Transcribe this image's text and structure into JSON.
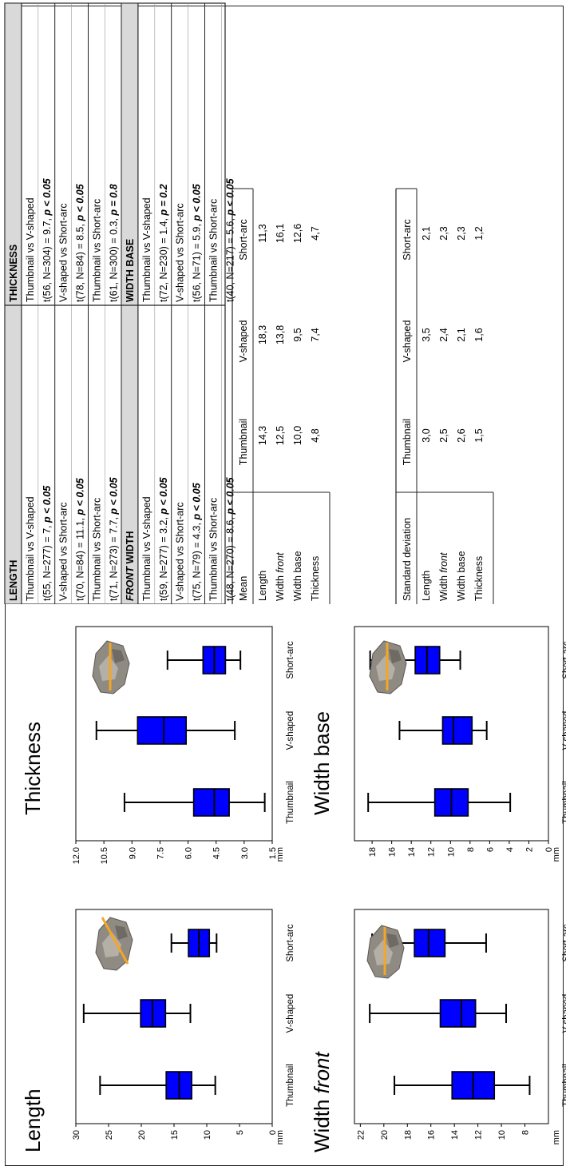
{
  "chart_data": [
    {
      "type": "box",
      "title": "Length",
      "unit": "mm",
      "y_ticks": [
        "0",
        "5",
        "10",
        "15",
        "20",
        "25",
        "30"
      ],
      "ylim": [
        0,
        30
      ],
      "categories": [
        "Thumbnail",
        "V-shaped",
        "Short-arc"
      ],
      "boxes": [
        {
          "min": 8.7,
          "q1": 12.3,
          "median": 14.2,
          "q3": 16.2,
          "max": 26.3
        },
        {
          "min": 12.5,
          "q1": 16.3,
          "median": 18.3,
          "q3": 20.1,
          "max": 28.8
        },
        {
          "min": 8.5,
          "q1": 9.6,
          "median": 11.2,
          "q3": 12.8,
          "max": 15.4
        }
      ],
      "color": "#0000ff"
    },
    {
      "type": "box",
      "title": "Thickness",
      "unit": "mm",
      "y_ticks": [
        "1.5",
        "3.0",
        "4.5",
        "6.0",
        "7.5",
        "9.0",
        "10.5",
        "12.0"
      ],
      "ylim": [
        1.5,
        12.0
      ],
      "categories": [
        "Thumbnail",
        "V-shaped",
        "Short-arc"
      ],
      "boxes": [
        {
          "min": 1.9,
          "q1": 3.8,
          "median": 4.6,
          "q3": 5.7,
          "max": 9.4
        },
        {
          "min": 3.5,
          "q1": 6.1,
          "median": 7.3,
          "q3": 8.7,
          "max": 10.9
        },
        {
          "min": 3.2,
          "q1": 4.0,
          "median": 4.6,
          "q3": 5.2,
          "max": 7.1
        }
      ],
      "color": "#0000ff"
    },
    {
      "type": "box",
      "title": "Width ",
      "title_italic": "front",
      "unit": "mm",
      "y_ticks": [
        "8",
        "10",
        "12",
        "14",
        "16",
        "18",
        "20",
        "22"
      ],
      "ylim": [
        6,
        22.5
      ],
      "categories": [
        "Thumbnail",
        "V-shaped",
        "Short-arc"
      ],
      "boxes": [
        {
          "min": 7.6,
          "q1": 10.6,
          "median": 12.4,
          "q3": 14.2,
          "max": 19.1
        },
        {
          "min": 9.6,
          "q1": 12.2,
          "median": 13.4,
          "q3": 15.2,
          "max": 21.2
        },
        {
          "min": 11.3,
          "q1": 14.8,
          "median": 16.2,
          "q3": 17.4,
          "max": 21.0
        }
      ],
      "color": "#0000ff"
    },
    {
      "type": "box",
      "title": "Width base",
      "unit": "mm",
      "y_ticks": [
        "0",
        "2",
        "4",
        "6",
        "8",
        "10",
        "12",
        "14",
        "16",
        "18"
      ],
      "ylim": [
        0,
        19.8
      ],
      "categories": [
        "Thumbnail",
        "V-shaped",
        "Short-arc"
      ],
      "boxes": [
        {
          "min": 3.9,
          "q1": 8.2,
          "median": 9.9,
          "q3": 11.6,
          "max": 18.4
        },
        {
          "min": 6.3,
          "q1": 7.8,
          "median": 9.7,
          "q3": 10.8,
          "max": 15.2
        },
        {
          "min": 9.0,
          "q1": 11.1,
          "median": 12.4,
          "q3": 13.6,
          "max": 18.2
        }
      ],
      "color": "#0000ff"
    }
  ],
  "tests": {
    "length": {
      "title": "LENGTH",
      "rows": [
        {
          "label": "Thumbnail vs V-shaped",
          "stat": "t(55, N=277) = 7, ",
          "p": "p < 0.05"
        },
        {
          "label": "V-shaped vs Short-arc",
          "stat": "t(70, N=84) = 11.1, ",
          "p": "p < 0.05"
        },
        {
          "label": "Thumbnail vs Short-arc",
          "stat": "t(71, N=273) = 7.7, ",
          "p": "p < 0.05"
        }
      ]
    },
    "thickness": {
      "title": "THICKNESS",
      "rows": [
        {
          "label": "Thumbnail vs V-shaped",
          "stat": "t(56, N=304) = 9.7, ",
          "p": "p < 0.05"
        },
        {
          "label": "V-shaped vs Short-arc",
          "stat": "t(78, N=84) = 8.5, ",
          "p": "p < 0.05"
        },
        {
          "label": "Thumbnail vs Short-arc",
          "stat": "t(61, N=300) = 0.3, ",
          "p": "p = 0.8"
        }
      ]
    },
    "front_width": {
      "title_italic": "FRONT",
      "title_rest": " WIDTH",
      "rows": [
        {
          "label": "Thumbnail vs V-shaped",
          "stat": "t(59, N=277) = 3.2, ",
          "p": "p < 0.05"
        },
        {
          "label": "V-shaped vs Short-arc",
          "stat": "t(75, N=79) = 4.3, ",
          "p": "p < 0.05"
        },
        {
          "label": "Thumbnail vs Short-arc",
          "stat": "t(48, N=270) = 8.6, ",
          "p": "p < 0.05"
        }
      ]
    },
    "width_base": {
      "title": "WIDTH BASE",
      "rows": [
        {
          "label": "Thumbnail vs V-shaped",
          "stat": "t(72, N=230) = 1.4, ",
          "p": "p = 0.2"
        },
        {
          "label": "V-shaped vs Short-arc",
          "stat": "t(56, N=71) = 5.9, ",
          "p": "p < 0.05"
        },
        {
          "label": "Thumbnail vs Short-arc",
          "stat": "t(40, N=217) = 5.6, ",
          "p": "p < 0.05"
        }
      ]
    }
  },
  "mean_table": {
    "header": [
      "Mean",
      "Thumbnail",
      "V-shaped",
      "Short-arc"
    ],
    "rows": [
      {
        "label": "Length",
        "values": [
          "14,3",
          "18,3",
          "11,3"
        ]
      },
      {
        "label": "Width ",
        "label_italic": "front",
        "values": [
          "12,5",
          "13,8",
          "16,1"
        ]
      },
      {
        "label": "Width base",
        "values": [
          "10,0",
          "9,5",
          "12,6"
        ]
      },
      {
        "label": "Thickness",
        "values": [
          "4,8",
          "7,4",
          "4,7"
        ]
      }
    ]
  },
  "sd_table": {
    "header": [
      "Standard deviation",
      "Thumbnail",
      "V-shaped",
      "Short-arc"
    ],
    "rows": [
      {
        "label": "Length",
        "values": [
          "3,0",
          "3,5",
          "2,1"
        ]
      },
      {
        "label": "Width ",
        "label_italic": "front",
        "values": [
          "2,5",
          "2,4",
          "2,3"
        ]
      },
      {
        "label": "Width base",
        "values": [
          "2,6",
          "2,1",
          "2,3"
        ]
      },
      {
        "label": "Thickness",
        "values": [
          "1,5",
          "1,6",
          "1,2"
        ]
      }
    ]
  },
  "colors": {
    "box": "#0000ff",
    "measure_line": "#f5a623",
    "header_bg": "#d9d9d9",
    "grid_line": "#999999"
  }
}
